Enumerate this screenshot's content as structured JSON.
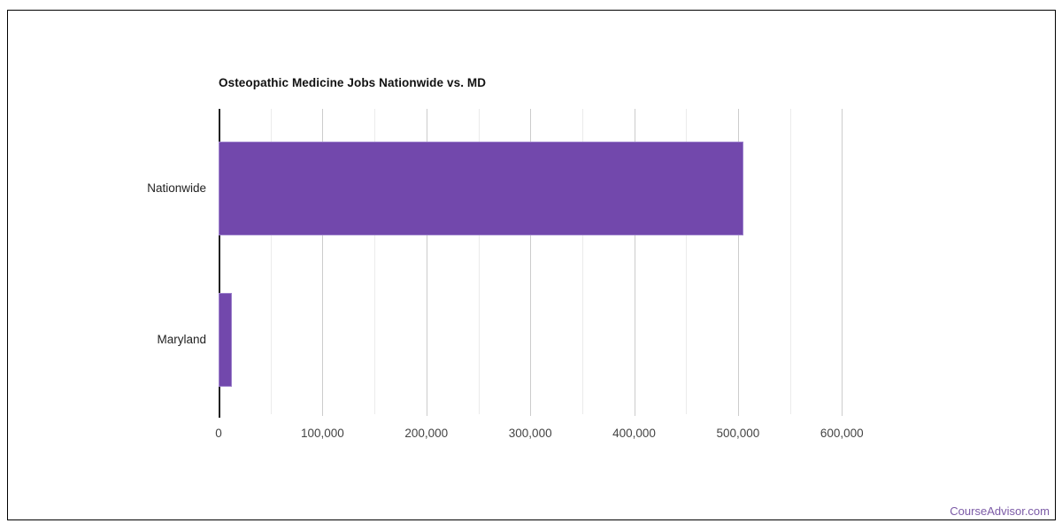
{
  "window": {
    "background": "#ffffff",
    "frame_border_color": "#000000"
  },
  "chart_data": {
    "type": "bar",
    "orientation": "horizontal",
    "title": "Osteopathic Medicine Jobs Nationwide vs. MD",
    "categories": [
      "Nationwide",
      "Maryland"
    ],
    "values": [
      505000,
      13000
    ],
    "xlabel": "",
    "ylabel": "",
    "xlim": [
      0,
      650000
    ],
    "x_ticks": [
      {
        "value": 0,
        "label": "0"
      },
      {
        "value": 100000,
        "label": "100,000"
      },
      {
        "value": 200000,
        "label": "200,000"
      },
      {
        "value": 300000,
        "label": "300,000"
      },
      {
        "value": 400000,
        "label": "400,000"
      },
      {
        "value": 500000,
        "label": "500,000"
      },
      {
        "value": 600000,
        "label": "600,000"
      }
    ],
    "minor_tick_step": 50000,
    "grid": true,
    "legend": "none",
    "colors": {
      "bar": "#7248AC",
      "bar_border": "#9B7FCB",
      "major_grid": "#CCCCCC",
      "minor_grid": "#EBEBEB",
      "axis_line": "#222222",
      "tick_label": "#444444",
      "category_label": "#222222",
      "title": "#111111"
    }
  },
  "footer": {
    "label": "CourseAdvisor.com",
    "color": "#7B5AA6"
  }
}
